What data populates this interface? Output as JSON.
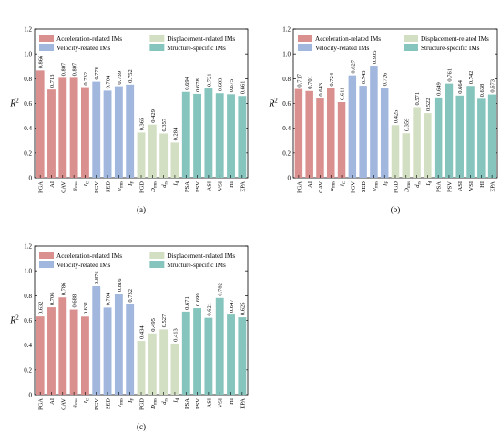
{
  "legend": [
    {
      "label": "Acceleration-related IMs",
      "color": "#d9908f"
    },
    {
      "label": "Displacement-related IMs",
      "color": "#d3dfc2"
    },
    {
      "label": "Velocity-related IMs",
      "color": "#a1b7de"
    },
    {
      "label": "Structure-specific IMs",
      "color": "#86c5bd"
    }
  ],
  "chart_data": [
    {
      "type": "bar",
      "panel_label": "(a)",
      "ylabel": "R",
      "ylabel_sup": "2",
      "ylim": [
        0,
        1.2
      ],
      "yticks": [
        "0",
        "0.2",
        "0.4",
        "0.6",
        "0.8",
        "1.0",
        "1.2"
      ],
      "categories": [
        {
          "main": "PGA",
          "sub": ""
        },
        {
          "main": "AI",
          "sub": ""
        },
        {
          "main": "CAV",
          "sub": ""
        },
        {
          "main": "a",
          "sub": "rms"
        },
        {
          "main": "I",
          "sub": "C"
        },
        {
          "main": "PGV",
          "sub": ""
        },
        {
          "main": "SED",
          "sub": ""
        },
        {
          "main": "v",
          "sub": "rms"
        },
        {
          "main": "I",
          "sub": "F"
        },
        {
          "main": "PGD",
          "sub": ""
        },
        {
          "main": "D",
          "sub": "rms"
        },
        {
          "main": "d",
          "sub": "rs"
        },
        {
          "main": "I",
          "sub": "d"
        },
        {
          "main": "PSA",
          "sub": ""
        },
        {
          "main": "PSV",
          "sub": ""
        },
        {
          "main": "ASI",
          "sub": ""
        },
        {
          "main": "VSI",
          "sub": ""
        },
        {
          "main": "HI",
          "sub": ""
        },
        {
          "main": "EPA",
          "sub": ""
        }
      ],
      "groups": [
        "acc",
        "acc",
        "acc",
        "acc",
        "acc",
        "vel",
        "vel",
        "vel",
        "vel",
        "disp",
        "disp",
        "disp",
        "disp",
        "str",
        "str",
        "str",
        "str",
        "str",
        "str"
      ],
      "values": [
        0.866,
        0.713,
        0.807,
        0.807,
        0.732,
        0.776,
        0.704,
        0.739,
        0.752,
        0.365,
        0.429,
        0.357,
        0.284,
        0.694,
        0.678,
        0.721,
        0.683,
        0.675,
        0.661
      ],
      "value_labels": [
        "0.866",
        "0.713",
        "0.807",
        "0.807",
        "0.732",
        "0.776",
        "0.704",
        "0.739",
        "0.752",
        "0.365",
        "0.429",
        "0.357",
        "0.284",
        "0.694",
        "0.678",
        "0.721",
        "0.683",
        "0.675",
        "0.661"
      ]
    },
    {
      "type": "bar",
      "panel_label": "(b)",
      "ylabel": "R",
      "ylabel_sup": "2",
      "ylim": [
        0,
        1.2
      ],
      "yticks": [
        "0",
        "0.2",
        "0.4",
        "0.6",
        "0.8",
        "1.0",
        "1.2"
      ],
      "categories": [
        {
          "main": "PGA",
          "sub": ""
        },
        {
          "main": "AI",
          "sub": ""
        },
        {
          "main": "CAV",
          "sub": ""
        },
        {
          "main": "a",
          "sub": "rms"
        },
        {
          "main": "I",
          "sub": "C"
        },
        {
          "main": "PGV",
          "sub": ""
        },
        {
          "main": "SED",
          "sub": ""
        },
        {
          "main": "v",
          "sub": "rms"
        },
        {
          "main": "I",
          "sub": "F"
        },
        {
          "main": "PGD",
          "sub": ""
        },
        {
          "main": "D",
          "sub": "rms"
        },
        {
          "main": "d",
          "sub": "rs"
        },
        {
          "main": "I",
          "sub": "d"
        },
        {
          "main": "PSA",
          "sub": ""
        },
        {
          "main": "PSV",
          "sub": ""
        },
        {
          "main": "ASI",
          "sub": ""
        },
        {
          "main": "VSI",
          "sub": ""
        },
        {
          "main": "HI",
          "sub": ""
        },
        {
          "main": "EPA",
          "sub": ""
        }
      ],
      "groups": [
        "acc",
        "acc",
        "acc",
        "acc",
        "acc",
        "vel",
        "vel",
        "vel",
        "vel",
        "disp",
        "disp",
        "disp",
        "disp",
        "str",
        "str",
        "str",
        "str",
        "str",
        "str"
      ],
      "values": [
        0.717,
        0.701,
        0.643,
        0.724,
        0.611,
        0.827,
        0.743,
        0.905,
        0.726,
        0.425,
        0.359,
        0.571,
        0.522,
        0.649,
        0.761,
        0.664,
        0.742,
        0.638,
        0.673
      ],
      "value_labels": [
        "0.717",
        "0.701",
        "0.643",
        "0.724",
        "0.611",
        "0.827",
        "0.743",
        "0.905",
        "0.726",
        "0.425",
        "0.359",
        "0.571",
        "0.522",
        "0.649",
        "0.761",
        "0.664",
        "0.742",
        "0.638",
        "0.673"
      ]
    },
    {
      "type": "bar",
      "panel_label": "(c)",
      "ylabel": "R",
      "ylabel_sup": "2",
      "ylim": [
        0,
        1.2
      ],
      "yticks": [
        "0",
        "0.2",
        "0.4",
        "0.6",
        "0.8",
        "1.0",
        "1.2"
      ],
      "categories": [
        {
          "main": "PGA",
          "sub": ""
        },
        {
          "main": "AI",
          "sub": ""
        },
        {
          "main": "CAV",
          "sub": ""
        },
        {
          "main": "a",
          "sub": "rms"
        },
        {
          "main": "I",
          "sub": "C"
        },
        {
          "main": "PGV",
          "sub": ""
        },
        {
          "main": "SED",
          "sub": ""
        },
        {
          "main": "v",
          "sub": "rms"
        },
        {
          "main": "I",
          "sub": "F"
        },
        {
          "main": "PGD",
          "sub": ""
        },
        {
          "main": "D",
          "sub": "rms"
        },
        {
          "main": "d",
          "sub": "rs"
        },
        {
          "main": "I",
          "sub": "d"
        },
        {
          "main": "PSA",
          "sub": ""
        },
        {
          "main": "PSV",
          "sub": ""
        },
        {
          "main": "ASI",
          "sub": ""
        },
        {
          "main": "VSI",
          "sub": ""
        },
        {
          "main": "HI",
          "sub": ""
        },
        {
          "main": "EPA",
          "sub": ""
        }
      ],
      "groups": [
        "acc",
        "acc",
        "acc",
        "acc",
        "acc",
        "vel",
        "vel",
        "vel",
        "vel",
        "disp",
        "disp",
        "disp",
        "disp",
        "str",
        "str",
        "str",
        "str",
        "str",
        "str"
      ],
      "values": [
        0.632,
        0.706,
        0.786,
        0.688,
        0.631,
        0.876,
        0.704,
        0.816,
        0.732,
        0.434,
        0.495,
        0.527,
        0.413,
        0.671,
        0.699,
        0.621,
        0.782,
        0.647,
        0.625
      ],
      "value_labels": [
        "0.632",
        "0.706",
        "0.786",
        "0.688",
        "0.631",
        "0.876",
        "0.704",
        "0.816",
        "0.732",
        "0.434",
        "0.495",
        "0.527",
        "0.413",
        "0.671",
        "0.699",
        "0.621",
        "0.782",
        "0.647",
        "0.625"
      ]
    }
  ],
  "group_colors": {
    "acc": "#d9908f",
    "vel": "#a1b7de",
    "disp": "#d3dfc2",
    "str": "#86c5bd"
  }
}
